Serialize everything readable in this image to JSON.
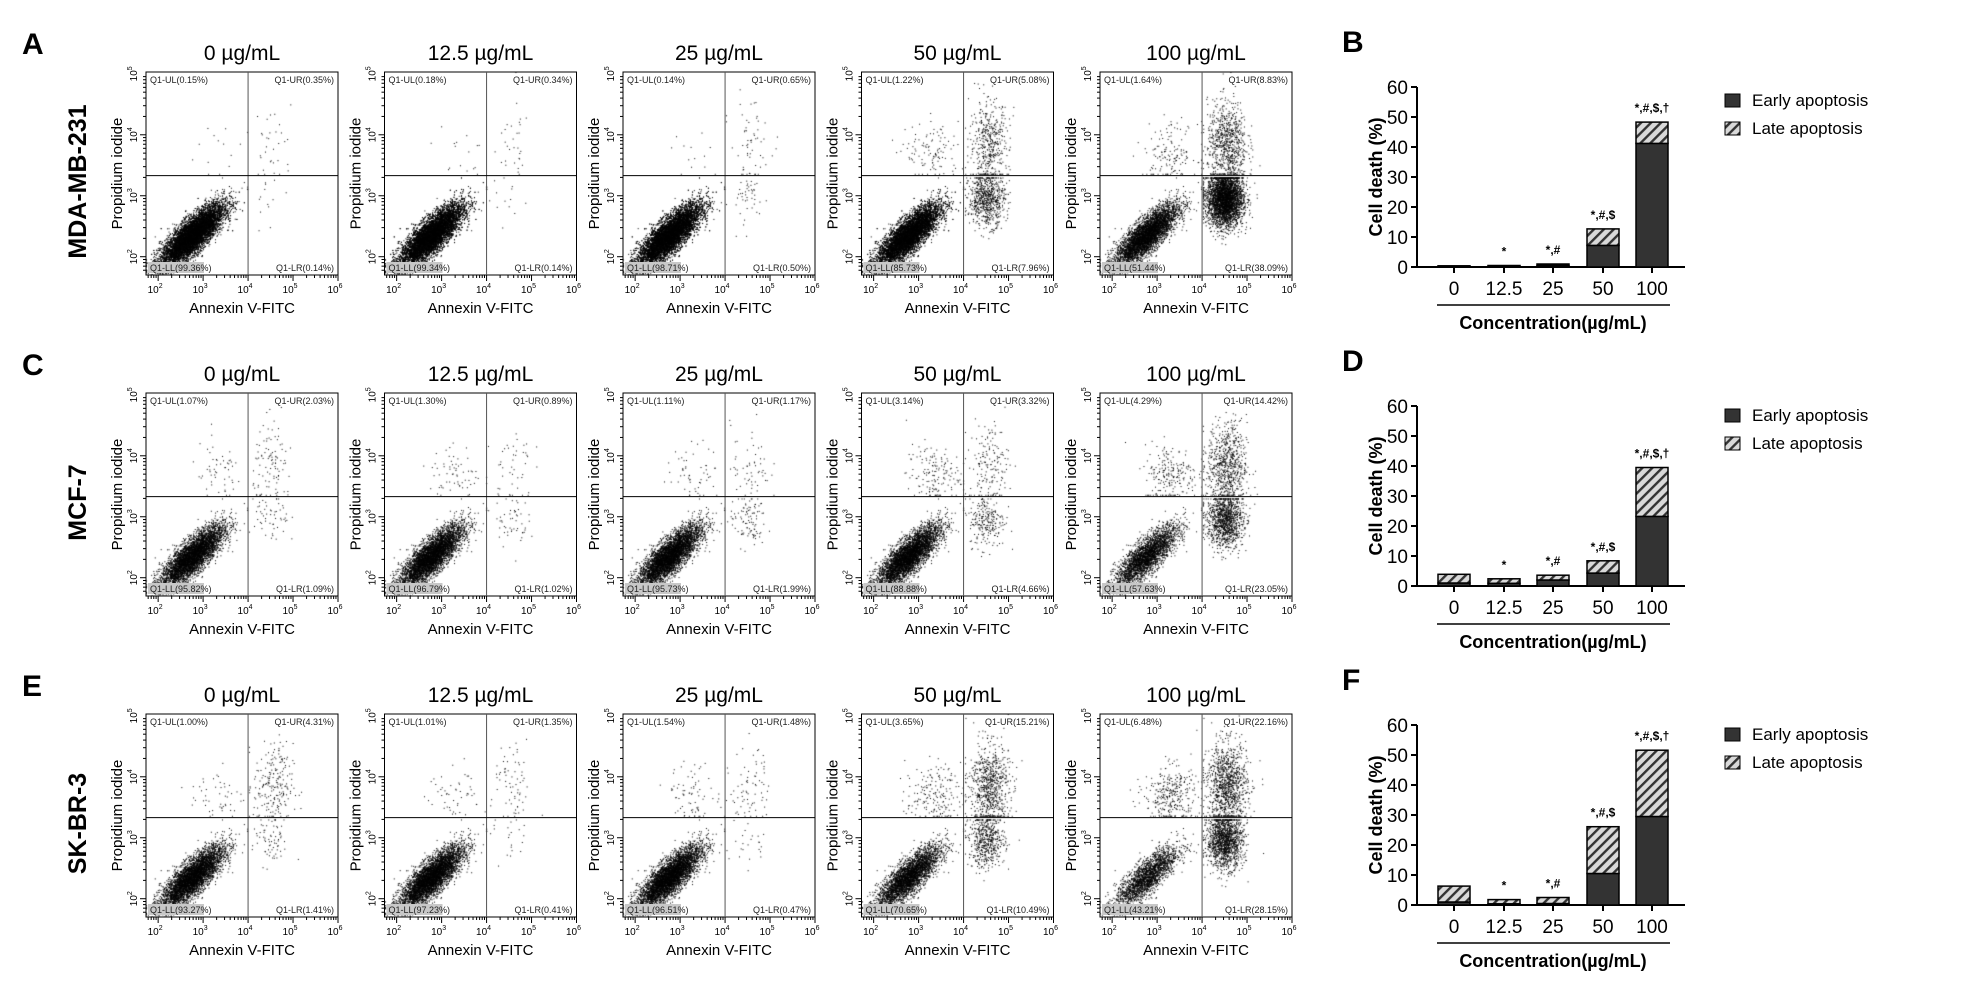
{
  "flow_rows": [
    {
      "panel_label": "A",
      "cell_line": "MDA-MB-231",
      "plots": [
        {
          "title": "0 µg/mL",
          "pct": {
            "UL": 0.15,
            "UR": 0.35,
            "LL": 99.36,
            "LR": 0.14
          },
          "labels": {
            "UL": "Q1-UL(0.15%)",
            "UR": "Q1-UR(0.35%)",
            "LL": "Q1-LL(99.36%)",
            "LR": "Q1-LR(0.14%)"
          }
        },
        {
          "title": "12.5 µg/mL",
          "pct": {
            "UL": 0.18,
            "UR": 0.34,
            "LL": 99.34,
            "LR": 0.14
          },
          "labels": {
            "UL": "Q1-UL(0.18%)",
            "UR": "Q1-UR(0.34%)",
            "LL": "Q1-LL(99.34%)",
            "LR": "Q1-LR(0.14%)"
          }
        },
        {
          "title": "25 µg/mL",
          "pct": {
            "UL": 0.14,
            "UR": 0.65,
            "LL": 98.71,
            "LR": 0.5
          },
          "labels": {
            "UL": "Q1-UL(0.14%)",
            "UR": "Q1-UR(0.65%)",
            "LL": "Q1-LL(98.71%)",
            "LR": "Q1-LR(0.50%)"
          }
        },
        {
          "title": "50 µg/mL",
          "pct": {
            "UL": 1.22,
            "UR": 5.08,
            "LL": 85.73,
            "LR": 7.96
          },
          "labels": {
            "UL": "Q1-UL(1.22%)",
            "UR": "Q1-UR(5.08%)",
            "LL": "Q1-LL(85.73%)",
            "LR": "Q1-LR(7.96%)"
          }
        },
        {
          "title": "100 µg/mL",
          "pct": {
            "UL": 1.64,
            "UR": 8.83,
            "LL": 51.44,
            "LR": 38.09
          },
          "labels": {
            "UL": "Q1-UL(1.64%)",
            "UR": "Q1-UR(8.83%)",
            "LL": "Q1-LL(51.44%)",
            "LR": "Q1-LR(38.09%)"
          }
        }
      ]
    },
    {
      "panel_label": "C",
      "cell_line": "MCF-7",
      "plots": [
        {
          "title": "0 µg/mL",
          "pct": {
            "UL": 1.07,
            "UR": 2.03,
            "LL": 95.82,
            "LR": 1.09
          },
          "labels": {
            "UL": "Q1-UL(1.07%)",
            "UR": "Q1-UR(2.03%)",
            "LL": "Q1-LL(95.82%)",
            "LR": "Q1-LR(1.09%)"
          }
        },
        {
          "title": "12.5 µg/mL",
          "pct": {
            "UL": 1.3,
            "UR": 0.89,
            "LL": 96.79,
            "LR": 1.02
          },
          "labels": {
            "UL": "Q1-UL(1.30%)",
            "UR": "Q1-UR(0.89%)",
            "LL": "Q1-LL(96.79%)",
            "LR": "Q1-LR(1.02%)"
          }
        },
        {
          "title": "25 µg/mL",
          "pct": {
            "UL": 1.11,
            "UR": 1.17,
            "LL": 95.73,
            "LR": 1.99
          },
          "labels": {
            "UL": "Q1-UL(1.11%)",
            "UR": "Q1-UR(1.17%)",
            "LL": "Q1-LL(95.73%)",
            "LR": "Q1-LR(1.99%)"
          }
        },
        {
          "title": "50 µg/mL",
          "pct": {
            "UL": 3.14,
            "UR": 3.32,
            "LL": 88.88,
            "LR": 4.66
          },
          "labels": {
            "UL": "Q1-UL(3.14%)",
            "UR": "Q1-UR(3.32%)",
            "LL": "Q1-LL(88.88%)",
            "LR": "Q1-LR(4.66%)"
          }
        },
        {
          "title": "100 µg/mL",
          "pct": {
            "UL": 4.29,
            "UR": 14.42,
            "LL": 57.63,
            "LR": 23.05
          },
          "labels": {
            "UL": "Q1-UL(4.29%)",
            "UR": "Q1-UR(14.42%)",
            "LL": "Q1-LL(57.63%)",
            "LR": "Q1-LR(23.05%)"
          }
        }
      ]
    },
    {
      "panel_label": "E",
      "cell_line": "SK-BR-3",
      "plots": [
        {
          "title": "0 µg/mL",
          "pct": {
            "UL": 1.0,
            "UR": 4.31,
            "LL": 93.27,
            "LR": 1.41
          },
          "labels": {
            "UL": "Q1-UL(1.00%)",
            "UR": "Q1-UR(4.31%)",
            "LL": "Q1-LL(93.27%)",
            "LR": "Q1-LR(1.41%)"
          }
        },
        {
          "title": "12.5 µg/mL",
          "pct": {
            "UL": 1.01,
            "UR": 1.35,
            "LL": 97.23,
            "LR": 0.41
          },
          "labels": {
            "UL": "Q1-UL(1.01%)",
            "UR": "Q1-UR(1.35%)",
            "LL": "Q1-LL(97.23%)",
            "LR": "Q1-LR(0.41%)"
          }
        },
        {
          "title": "25 µg/mL",
          "pct": {
            "UL": 1.54,
            "UR": 1.48,
            "LL": 96.51,
            "LR": 0.47
          },
          "labels": {
            "UL": "Q1-UL(1.54%)",
            "UR": "Q1-UR(1.48%)",
            "LL": "Q1-LL(96.51%)",
            "LR": "Q1-LR(0.47%)"
          }
        },
        {
          "title": "50 µg/mL",
          "pct": {
            "UL": 3.65,
            "UR": 15.21,
            "LL": 70.65,
            "LR": 10.49
          },
          "labels": {
            "UL": "Q1-UL(3.65%)",
            "UR": "Q1-UR(15.21%)",
            "LL": "Q1-LL(70.65%)",
            "LR": "Q1-LR(10.49%)"
          }
        },
        {
          "title": "100 µg/mL",
          "pct": {
            "UL": 6.48,
            "UR": 22.16,
            "LL": 43.21,
            "LR": 28.15
          },
          "labels": {
            "UL": "Q1-UL(6.48%)",
            "UR": "Q1-UR(22.16%)",
            "LL": "Q1-LL(43.21%)",
            "LR": "Q1-LR(28.15%)"
          }
        }
      ]
    }
  ],
  "flow_axes": {
    "xlabel": "Annexin V-FITC",
    "ylabel": "Propidium iodide",
    "x_tick_exponents": [
      "2",
      "3",
      "4",
      "5",
      "6"
    ],
    "y_tick_exponents": [
      "2",
      "3",
      "4",
      "5"
    ],
    "x_scale": "log",
    "y_scale": "log",
    "x_gate": "10^4",
    "y_gate": "10^3.3"
  },
  "chart_data": [
    {
      "type": "bar",
      "stacked": true,
      "panel_label": "B",
      "categories": [
        "0",
        "12.5",
        "25",
        "50",
        "100"
      ],
      "series": [
        {
          "name": "Early apoptosis",
          "values": [
            0.1,
            0.2,
            0.5,
            7.2,
            41.2
          ]
        },
        {
          "name": "Late apoptosis",
          "values": [
            0.3,
            0.3,
            0.5,
            5.5,
            7.1
          ]
        }
      ],
      "significance": [
        "",
        "*",
        "*,#",
        "*,#,$",
        "*,#,$,†"
      ],
      "xlabel": "Concentration(µg/mL)",
      "ylabel": "Cell death (%)",
      "ylim": [
        0,
        60
      ],
      "yticks": [
        "0",
        "10",
        "20",
        "30",
        "40",
        "50",
        "60"
      ],
      "legend": "right"
    },
    {
      "type": "bar",
      "stacked": true,
      "panel_label": "D",
      "categories": [
        "0",
        "12.5",
        "25",
        "50",
        "100"
      ],
      "series": [
        {
          "name": "Early apoptosis",
          "values": [
            1.0,
            0.9,
            2.0,
            4.3,
            23.2
          ]
        },
        {
          "name": "Late apoptosis",
          "values": [
            2.9,
            1.5,
            1.6,
            4.1,
            16.3
          ]
        }
      ],
      "significance": [
        "",
        "*",
        "*,#",
        "*,#,$",
        "*,#,$,†"
      ],
      "xlabel": "Concentration(µg/mL)",
      "ylabel": "Cell death (%)",
      "ylim": [
        0,
        60
      ],
      "yticks": [
        "0",
        "10",
        "20",
        "30",
        "40",
        "50",
        "60"
      ],
      "legend": "right"
    },
    {
      "type": "bar",
      "stacked": true,
      "panel_label": "F",
      "categories": [
        "0",
        "12.5",
        "25",
        "50",
        "100"
      ],
      "series": [
        {
          "name": "Early apoptosis",
          "values": [
            1.0,
            0.4,
            0.5,
            10.5,
            29.5
          ]
        },
        {
          "name": "Late apoptosis",
          "values": [
            5.3,
            1.4,
            2.0,
            15.6,
            22.1
          ]
        }
      ],
      "significance": [
        "",
        "*",
        "*,#",
        "*,#,$",
        "*,#,$,†"
      ],
      "xlabel": "Concentration(µg/mL)",
      "ylabel": "Cell death (%)",
      "ylim": [
        0,
        60
      ],
      "yticks": [
        "0",
        "10",
        "20",
        "30",
        "40",
        "50",
        "60"
      ],
      "legend": "right"
    }
  ],
  "colors": {
    "early": "#333333",
    "late_hatch_bg": "#d9d9d9",
    "late_hatch_line": "#333333",
    "dots": "#000000"
  }
}
